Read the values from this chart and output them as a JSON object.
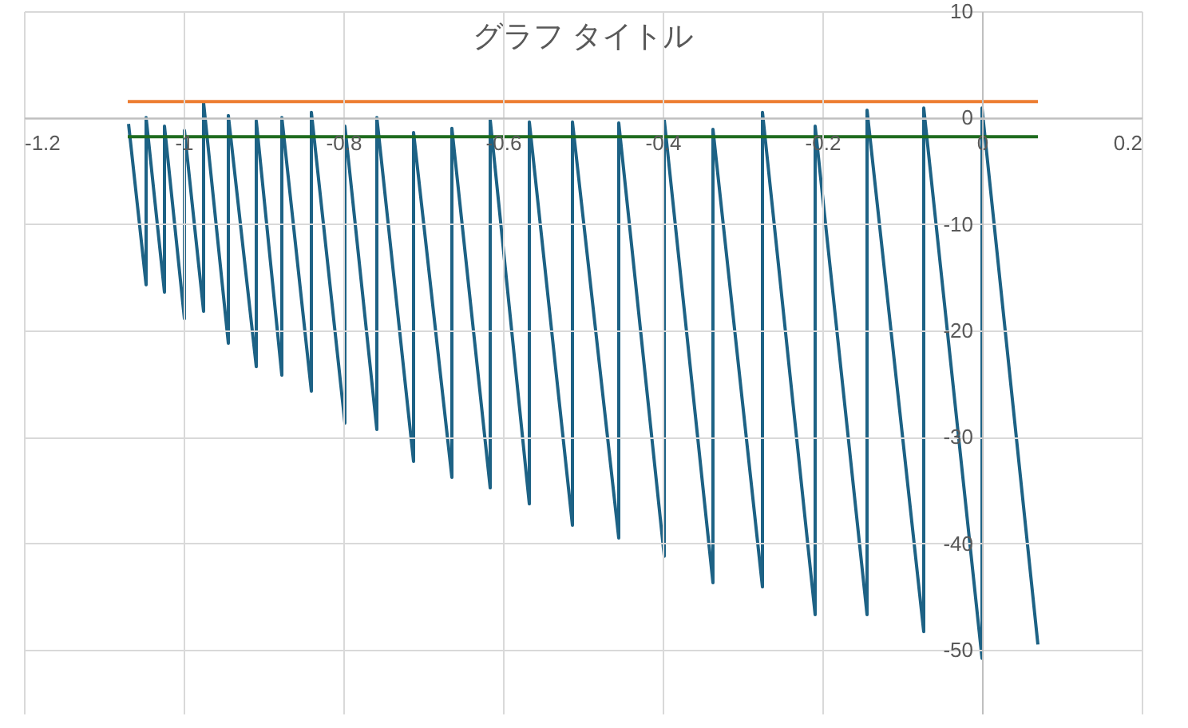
{
  "chart_data": {
    "type": "line",
    "title": "グラフ タイトル",
    "xlim": [
      -1.2,
      0.2
    ],
    "xticks": [
      -1.2,
      -1,
      -0.8,
      -0.6,
      -0.4,
      -0.2,
      0,
      0.2
    ],
    "ylim": [
      -56,
      10
    ],
    "yticks": [
      10,
      0,
      -10,
      -20,
      -30,
      -40,
      -50
    ],
    "grid": true,
    "legend": false,
    "marker": "none",
    "series": [
      {
        "color": "#1d6285",
        "x": [
          -1.069,
          -1.047,
          -1.047,
          -1.024,
          -1.024,
          -0.999,
          -0.999,
          -0.975,
          -0.975,
          -0.944,
          -0.944,
          -0.909,
          -0.909,
          -0.877,
          -0.877,
          -0.84,
          -0.84,
          -0.798,
          -0.798,
          -0.758,
          -0.758,
          -0.712,
          -0.712,
          -0.664,
          -0.664,
          -0.616,
          -0.616,
          -0.567,
          -0.567,
          -0.513,
          -0.513,
          -0.455,
          -0.455,
          -0.398,
          -0.398,
          -0.337,
          -0.337,
          -0.275,
          -0.275,
          -0.209,
          -0.209,
          -0.144,
          -0.144,
          -0.073,
          -0.073,
          0,
          0,
          0.07
        ],
        "values": [
          -0.6,
          -15.7,
          0,
          -16.4,
          -0.8,
          -18.9,
          -1.2,
          -18.2,
          1.4,
          -21.2,
          0.2,
          -23.4,
          -0.3,
          -24.2,
          0,
          -25.7,
          0.5,
          -28.7,
          -0.8,
          -29.3,
          0,
          -32.3,
          -1.4,
          -33.8,
          -1,
          -34.8,
          -0.2,
          -36.3,
          -0.4,
          -38.3,
          -0.4,
          -39.5,
          -0.5,
          -41.2,
          -0.2,
          -43.7,
          -1.1,
          -44.1,
          0.5,
          -46.7,
          -0.8,
          -46.7,
          0.7,
          -48.3,
          0.9,
          -50.8,
          0.9,
          -49.5
        ]
      },
      {
        "color": "#ed7d31",
        "x": [
          -1.07,
          0.07
        ],
        "values": [
          1.5,
          1.5
        ]
      },
      {
        "color": "#1e6b1e",
        "x": [
          -1.07,
          0.07
        ],
        "values": [
          -1.8,
          -1.8
        ]
      }
    ]
  }
}
